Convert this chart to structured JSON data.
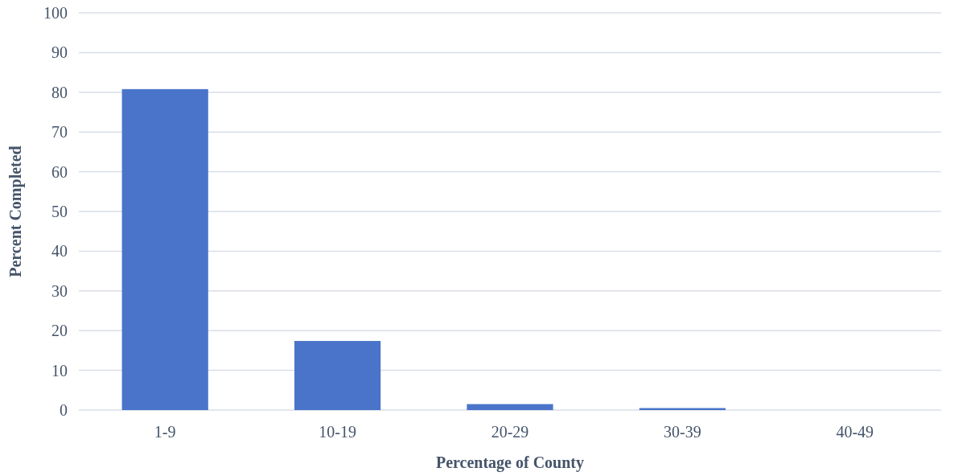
{
  "chart_data": {
    "type": "bar",
    "xlabel": "Percentage of County",
    "ylabel": "Percent Completed",
    "categories": [
      "1-9",
      "10-19",
      "20-29",
      "30-39",
      "40-49"
    ],
    "values": [
      80.8,
      17.4,
      1.5,
      0.5,
      0
    ],
    "color": "#4a74c9",
    "ylim": [
      0,
      100
    ],
    "yticks": [
      0,
      10,
      20,
      30,
      40,
      50,
      60,
      70,
      80,
      90,
      100
    ],
    "grid": "y"
  }
}
